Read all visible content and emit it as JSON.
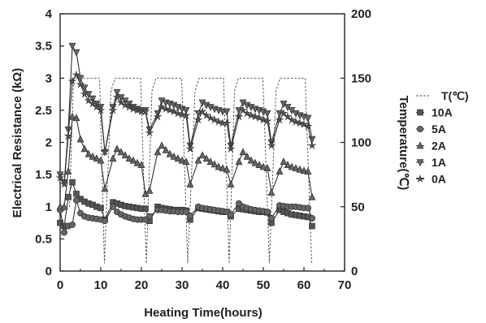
{
  "chart_data": {
    "type": "line",
    "xlabel": "Heating Time(hours)",
    "ylabel": "Electrical Resistance (kΩ)",
    "y2label": "Temperature(℃)",
    "xlim": [
      0,
      70
    ],
    "ylim": [
      0,
      4
    ],
    "y2lim": [
      0,
      200
    ],
    "x_ticks": [
      "0",
      "10",
      "20",
      "30",
      "40",
      "50",
      "60",
      "70"
    ],
    "y_ticks": [
      "0",
      "0.5",
      "1",
      "1.5",
      "2",
      "2.5",
      "3",
      "3.5",
      "4"
    ],
    "y2_ticks": [
      "0",
      "50",
      "100",
      "150",
      "200"
    ],
    "grid": false,
    "legend_position": "right",
    "series": [
      {
        "name": "T(℃)",
        "axis": "right",
        "marker": "none",
        "line_style": "dashed",
        "x": [
          0,
          2.3,
          3.3,
          9.7,
          10.9,
          12.5,
          13.5,
          19.8,
          21.2,
          22.6,
          23.6,
          29.9,
          31.4,
          33.2,
          34.2,
          40.2,
          41.6,
          42.9,
          43.9,
          49.9,
          51.5,
          53.1,
          54.1,
          60.3,
          61.9
        ],
        "values": [
          45,
          50,
          150,
          150,
          6,
          140,
          150,
          150,
          6,
          140,
          150,
          150,
          6,
          140,
          150,
          150,
          6,
          140,
          150,
          150,
          6,
          140,
          150,
          150,
          6
        ]
      },
      {
        "name": "10A",
        "axis": "left",
        "marker": "square",
        "x": [
          0,
          1,
          2,
          3,
          4,
          5,
          6,
          7,
          8,
          9,
          10,
          11,
          13,
          14,
          15,
          16,
          17,
          18,
          19,
          20,
          21,
          22,
          24,
          25,
          26,
          27,
          28,
          29,
          30,
          31,
          32,
          34,
          35,
          36,
          37,
          38,
          39,
          40,
          41,
          42,
          44,
          45,
          46,
          47,
          48,
          49,
          50,
          51,
          52,
          54,
          55,
          56,
          57,
          58,
          59,
          60,
          61,
          62
        ],
        "values": [
          0.75,
          0.7,
          1.15,
          1.38,
          1.2,
          1.12,
          1.08,
          1.05,
          1.03,
          1.0,
          0.98,
          0.8,
          1.07,
          1.05,
          1.03,
          1.01,
          1.0,
          0.99,
          0.98,
          0.97,
          0.97,
          0.78,
          1.0,
          0.98,
          0.97,
          0.96,
          0.95,
          0.95,
          0.95,
          0.94,
          0.8,
          0.98,
          0.97,
          0.96,
          0.95,
          0.94,
          0.93,
          0.92,
          0.92,
          0.85,
          0.97,
          0.96,
          0.95,
          0.94,
          0.93,
          0.92,
          0.92,
          0.91,
          0.75,
          0.95,
          0.92,
          0.9,
          0.88,
          0.87,
          0.86,
          0.85,
          0.84,
          0.7
        ]
      },
      {
        "name": "5A",
        "axis": "left",
        "marker": "circle",
        "x": [
          0,
          1,
          2,
          3,
          4,
          5,
          6,
          7,
          8,
          9,
          10,
          11,
          13,
          14,
          15,
          16,
          17,
          18,
          19,
          20,
          21,
          22,
          24,
          25,
          26,
          27,
          28,
          29,
          30,
          31,
          32,
          34,
          35,
          36,
          37,
          38,
          39,
          40,
          41,
          42,
          44,
          45,
          46,
          47,
          48,
          49,
          50,
          51,
          52,
          54,
          55,
          56,
          57,
          58,
          59,
          60,
          61,
          62
        ],
        "values": [
          0.95,
          0.6,
          0.7,
          0.72,
          1.1,
          0.9,
          0.85,
          0.83,
          0.82,
          0.81,
          0.8,
          0.78,
          1.0,
          0.92,
          0.88,
          0.85,
          0.83,
          0.81,
          0.8,
          0.8,
          0.8,
          0.85,
          0.95,
          0.95,
          0.94,
          0.93,
          0.93,
          0.92,
          0.92,
          0.92,
          0.86,
          1.0,
          0.98,
          0.97,
          0.96,
          0.95,
          0.94,
          0.93,
          0.92,
          0.88,
          1.05,
          1.0,
          0.98,
          0.96,
          0.95,
          0.94,
          0.93,
          0.92,
          0.82,
          1.02,
          1.01,
          1.0,
          1.0,
          1.0,
          0.99,
          0.98,
          0.98,
          0.82
        ]
      },
      {
        "name": "2A",
        "axis": "left",
        "marker": "triangle-up",
        "x": [
          0,
          1,
          2,
          3,
          4,
          5,
          6,
          7,
          8,
          9,
          10,
          11,
          13,
          14,
          15,
          16,
          17,
          18,
          19,
          20,
          21,
          22,
          24,
          25,
          26,
          27,
          28,
          29,
          30,
          31,
          32,
          34,
          35,
          36,
          37,
          38,
          39,
          40,
          41,
          42,
          44,
          45,
          46,
          47,
          48,
          49,
          50,
          51,
          52,
          54,
          55,
          56,
          57,
          58,
          59,
          60,
          61,
          62
        ],
        "values": [
          1.0,
          1.0,
          1.55,
          2.4,
          2.38,
          2.05,
          1.9,
          1.82,
          1.78,
          1.75,
          1.72,
          1.28,
          1.75,
          1.9,
          1.85,
          1.8,
          1.75,
          1.72,
          1.68,
          1.65,
          1.2,
          1.25,
          1.85,
          1.95,
          1.88,
          1.82,
          1.78,
          1.75,
          1.72,
          1.7,
          1.35,
          1.72,
          1.8,
          1.75,
          1.7,
          1.66,
          1.62,
          1.6,
          1.58,
          1.35,
          1.7,
          1.85,
          1.78,
          1.72,
          1.68,
          1.65,
          1.62,
          1.6,
          1.22,
          1.55,
          1.7,
          1.65,
          1.62,
          1.6,
          1.58,
          1.56,
          1.55,
          1.15
        ]
      },
      {
        "name": "1A",
        "axis": "left",
        "marker": "triangle-down",
        "x": [
          0,
          1,
          2,
          3,
          4,
          5,
          6,
          7,
          8,
          9,
          10,
          11,
          13,
          14,
          15,
          16,
          17,
          18,
          19,
          20,
          21,
          22,
          24,
          25,
          26,
          27,
          28,
          29,
          30,
          31,
          32,
          34,
          35,
          36,
          37,
          38,
          39,
          40,
          41,
          42,
          44,
          45,
          46,
          47,
          48,
          49,
          50,
          51,
          52,
          54,
          55,
          56,
          57,
          58,
          59,
          60,
          61,
          62
        ],
        "values": [
          1.5,
          1.38,
          2.2,
          3.5,
          3.4,
          3.0,
          2.85,
          2.75,
          2.68,
          2.6,
          2.55,
          1.85,
          2.55,
          2.78,
          2.7,
          2.65,
          2.6,
          2.55,
          2.52,
          2.5,
          2.5,
          2.2,
          2.45,
          2.65,
          2.62,
          2.6,
          2.58,
          2.55,
          2.52,
          2.5,
          1.95,
          2.45,
          2.62,
          2.58,
          2.55,
          2.52,
          2.5,
          2.48,
          2.48,
          1.95,
          2.5,
          2.62,
          2.58,
          2.55,
          2.52,
          2.5,
          2.48,
          2.45,
          2.0,
          2.45,
          2.6,
          2.55,
          2.5,
          2.45,
          2.42,
          2.4,
          2.38,
          2.05
        ]
      },
      {
        "name": "0A",
        "axis": "left",
        "marker": "star",
        "x": [
          0,
          1,
          2,
          3,
          4,
          5,
          6,
          7,
          8,
          9,
          10,
          11,
          13,
          14,
          15,
          16,
          17,
          18,
          19,
          20,
          21,
          22,
          24,
          25,
          26,
          27,
          28,
          29,
          30,
          31,
          32,
          34,
          35,
          36,
          37,
          38,
          39,
          40,
          41,
          42,
          44,
          45,
          46,
          47,
          48,
          49,
          50,
          51,
          52,
          54,
          55,
          56,
          57,
          58,
          59,
          60,
          61,
          62
        ],
        "values": [
          1.45,
          1.35,
          2.1,
          2.95,
          3.05,
          2.9,
          2.75,
          2.65,
          2.6,
          2.55,
          2.5,
          1.85,
          2.5,
          2.7,
          2.62,
          2.58,
          2.55,
          2.52,
          2.5,
          2.48,
          2.48,
          2.15,
          2.4,
          2.55,
          2.52,
          2.5,
          2.48,
          2.45,
          2.43,
          2.42,
          1.9,
          2.35,
          2.48,
          2.42,
          2.38,
          2.35,
          2.32,
          2.3,
          2.3,
          1.9,
          2.4,
          2.5,
          2.45,
          2.42,
          2.4,
          2.38,
          2.35,
          2.33,
          1.95,
          2.35,
          2.45,
          2.4,
          2.35,
          2.32,
          2.3,
          2.28,
          2.25,
          1.95
        ]
      }
    ]
  }
}
